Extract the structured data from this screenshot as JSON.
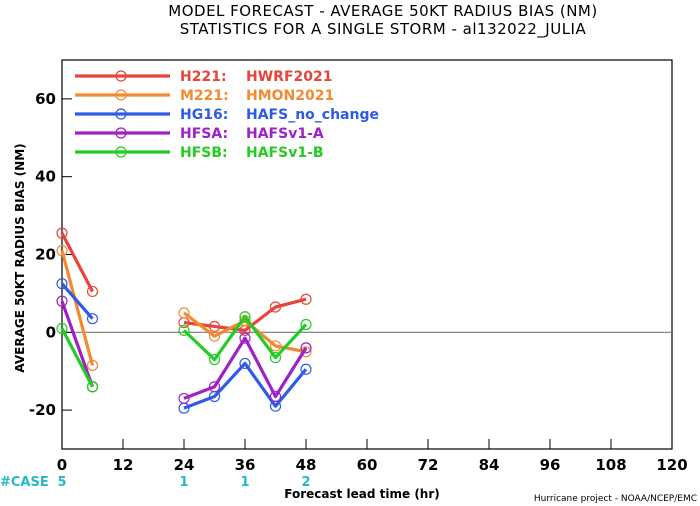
{
  "chart_data": {
    "type": "line",
    "title": "MODEL FORECAST - AVERAGE 50KT RADIUS BIAS (NM)",
    "subtitle": "STATISTICS FOR A SINGLE STORM - al132022_JULIA",
    "xlabel": "Forecast lead time (hr)",
    "ylabel": "AVERAGE 50KT RADIUS BIAS (NM)",
    "xlim": [
      0,
      120
    ],
    "ylim": [
      -30,
      70
    ],
    "xticks": [
      0,
      12,
      24,
      36,
      48,
      60,
      72,
      84,
      96,
      108,
      120
    ],
    "yticks": [
      -20,
      0,
      20,
      40,
      60
    ],
    "case_label": "#CASE",
    "cases": [
      {
        "x": 0,
        "count": "5"
      },
      {
        "x": 24,
        "count": "1"
      },
      {
        "x": 36,
        "count": "1"
      },
      {
        "x": 48,
        "count": "2"
      }
    ],
    "series": [
      {
        "code": "H221:",
        "name": "HWRF2021",
        "color": "#e8443a",
        "segments": [
          [
            [
              0,
              25.5
            ],
            [
              6,
              10.5
            ]
          ],
          [
            [
              24,
              2.5
            ],
            [
              30,
              1.5
            ],
            [
              36,
              0.5
            ],
            [
              42,
              6.5
            ],
            [
              48,
              8.5
            ]
          ]
        ]
      },
      {
        "code": "M221:",
        "name": "HMON2021",
        "color": "#f28a30",
        "segments": [
          [
            [
              0,
              21
            ],
            [
              6,
              -8.5
            ]
          ],
          [
            [
              24,
              5
            ],
            [
              30,
              -1
            ],
            [
              36,
              3
            ],
            [
              42,
              -3.5
            ],
            [
              48,
              -5
            ]
          ]
        ]
      },
      {
        "code": "HG16:",
        "name": "HAFS_no_change",
        "color": "#2e5be6",
        "segments": [
          [
            [
              0,
              12.5
            ],
            [
              6,
              3.5
            ]
          ],
          [
            [
              24,
              -19.5
            ],
            [
              30,
              -16.5
            ],
            [
              36,
              -8
            ],
            [
              42,
              -19
            ],
            [
              48,
              -9.5
            ]
          ]
        ]
      },
      {
        "code": "HFSA:",
        "name": "HAFSv1-A",
        "color": "#a020c8",
        "segments": [
          [
            [
              0,
              8
            ],
            [
              6,
              -14
            ]
          ],
          [
            [
              24,
              -17
            ],
            [
              30,
              -14
            ],
            [
              36,
              -1.5
            ],
            [
              42,
              -16.5
            ],
            [
              48,
              -4
            ]
          ]
        ]
      },
      {
        "code": "HFSB:",
        "name": "HAFSv1-B",
        "color": "#22cc22",
        "segments": [
          [
            [
              0,
              1
            ],
            [
              6,
              -14
            ]
          ],
          [
            [
              24,
              0.5
            ],
            [
              30,
              -7
            ],
            [
              36,
              4
            ],
            [
              42,
              -6.5
            ],
            [
              48,
              2
            ]
          ]
        ]
      }
    ]
  },
  "footer": {
    "credit": "Hurricane project - NOAA/NCEP/EMC"
  }
}
